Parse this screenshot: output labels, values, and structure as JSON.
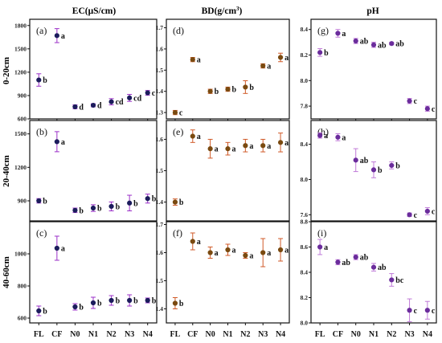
{
  "figure": {
    "column_titles": [
      "EC(μS/cm)",
      "BD(g/cm",
      "pH"
    ],
    "column_title_superscript": "3",
    "column_title_suffix": ")",
    "row_labels": [
      "0-20cm",
      "20-40cm",
      "40-60cm"
    ],
    "x_ticks": [
      "FL",
      "CF",
      "N0",
      "N1",
      "N2",
      "N3",
      "N4"
    ]
  },
  "chart_data": [
    {
      "type": "scatter",
      "panel": "(a)",
      "column": "EC",
      "depth": "0-20cm",
      "categories": [
        "FL",
        "CF",
        "N0",
        "N1",
        "N2",
        "N3",
        "N4"
      ],
      "values": [
        1100,
        1670,
        755,
        775,
        820,
        870,
        935
      ],
      "errors": [
        80,
        90,
        25,
        20,
        40,
        45,
        30
      ],
      "letters": [
        "b",
        "a",
        "d",
        "d",
        "cd",
        "cd",
        "c"
      ],
      "ylim": [
        600,
        1880
      ],
      "yticks": [
        600,
        900,
        1200,
        1500,
        1800
      ],
      "marker_color": "#1c1c5c",
      "error_color": "#9b30c8"
    },
    {
      "type": "scatter",
      "panel": "(b)",
      "column": "EC",
      "depth": "20-40cm",
      "categories": [
        "FL",
        "CF",
        "N0",
        "N1",
        "N2",
        "N3",
        "N4"
      ],
      "values": [
        900,
        1430,
        815,
        835,
        850,
        880,
        920
      ],
      "errors": [
        20,
        90,
        20,
        30,
        40,
        70,
        40
      ],
      "letters": [
        "b",
        "a",
        "b",
        "b",
        "b",
        "b",
        "b"
      ],
      "ylim": [
        720,
        1620
      ],
      "yticks": [
        900,
        1200,
        1500
      ],
      "marker_color": "#1c1c5c",
      "error_color": "#9b30c8"
    },
    {
      "type": "scatter",
      "panel": "(c)",
      "column": "EC",
      "depth": "40-60cm",
      "categories": [
        "FL",
        "CF",
        "N0",
        "N1",
        "N2",
        "N3",
        "N4"
      ],
      "values": [
        645,
        1035,
        670,
        695,
        710,
        710,
        710
      ],
      "errors": [
        30,
        75,
        20,
        35,
        30,
        35,
        15
      ],
      "letters": [
        "b",
        "a",
        "b",
        "b",
        "b",
        "b",
        "b"
      ],
      "ylim": [
        570,
        1200
      ],
      "yticks": [
        600,
        800,
        1000
      ],
      "marker_color": "#1c1c5c",
      "error_color": "#9b30c8"
    },
    {
      "type": "scatter",
      "panel": "(d)",
      "column": "BD",
      "depth": "0-20cm",
      "categories": [
        "FL",
        "CF",
        "N0",
        "N1",
        "N2",
        "N3",
        "N4"
      ],
      "values": [
        1.3,
        1.55,
        1.4,
        1.41,
        1.42,
        1.52,
        1.56
      ],
      "errors": [
        0.01,
        0.01,
        0.01,
        0.01,
        0.03,
        0.01,
        0.02
      ],
      "letters": [
        "c",
        "a",
        "b",
        "b",
        "b",
        "a",
        "a"
      ],
      "ylim": [
        1.27,
        1.74
      ],
      "yticks": [
        1.3,
        1.4,
        1.5,
        1.6,
        1.7
      ],
      "marker_color": "#7a4a10",
      "error_color": "#d05a28"
    },
    {
      "type": "scatter",
      "panel": "(e)",
      "column": "BD",
      "depth": "20-40cm",
      "categories": [
        "FL",
        "CF",
        "N0",
        "N1",
        "N2",
        "N3",
        "N4"
      ],
      "values": [
        1.4,
        1.61,
        1.57,
        1.57,
        1.58,
        1.58,
        1.59
      ],
      "errors": [
        0.01,
        0.02,
        0.03,
        0.02,
        0.02,
        0.02,
        0.03
      ],
      "letters": [
        "b",
        "a",
        "a",
        "a",
        "a",
        "a",
        "a"
      ],
      "ylim": [
        1.34,
        1.66
      ],
      "yticks": [
        1.4,
        1.5,
        1.6
      ],
      "marker_color": "#7a4a10",
      "error_color": "#d05a28"
    },
    {
      "type": "scatter",
      "panel": "(f)",
      "column": "BD",
      "depth": "40-60cm",
      "categories": [
        "FL",
        "CF",
        "N0",
        "N1",
        "N2",
        "N3",
        "N4"
      ],
      "values": [
        1.42,
        1.64,
        1.6,
        1.61,
        1.59,
        1.6,
        1.61
      ],
      "errors": [
        0.02,
        0.03,
        0.02,
        0.02,
        0.01,
        0.05,
        0.04
      ],
      "letters": [
        "b",
        "a",
        "a",
        "a",
        "a",
        "a",
        "a"
      ],
      "ylim": [
        1.35,
        1.71
      ],
      "yticks": [
        1.4,
        1.5,
        1.6,
        1.7
      ],
      "marker_color": "#7a4a10",
      "error_color": "#d05a28"
    },
    {
      "type": "scatter",
      "panel": "(g)",
      "column": "pH",
      "depth": "0-20cm",
      "categories": [
        "FL",
        "CF",
        "N0",
        "N1",
        "N2",
        "N3",
        "N4"
      ],
      "values": [
        8.22,
        8.37,
        8.31,
        8.28,
        8.29,
        7.84,
        7.78
      ],
      "errors": [
        0.03,
        0.03,
        0.02,
        0.02,
        0.01,
        0.02,
        0.02
      ],
      "letters": [
        "b",
        "a",
        "ab",
        "ab",
        "ab",
        "c",
        "c"
      ],
      "ylim": [
        7.7,
        8.48
      ],
      "yticks": [
        7.8,
        8.0,
        8.2,
        8.4
      ],
      "marker_color": "#6b2d9c",
      "error_color": "#c07ad8"
    },
    {
      "type": "scatter",
      "panel": "(h)",
      "column": "pH",
      "depth": "20-40cm",
      "categories": [
        "FL",
        "CF",
        "N0",
        "N1",
        "N2",
        "N3",
        "N4"
      ],
      "values": [
        8.5,
        8.48,
        8.22,
        8.11,
        8.16,
        7.6,
        7.64
      ],
      "errors": [
        0.03,
        0.04,
        0.13,
        0.09,
        0.04,
        0.02,
        0.04
      ],
      "letters": [
        "a",
        "a",
        "ab",
        "b",
        "b",
        "c",
        "c"
      ],
      "ylim": [
        7.53,
        8.67
      ],
      "yticks": [
        7.6,
        8.0,
        8.4
      ],
      "marker_color": "#6b2d9c",
      "error_color": "#c07ad8"
    },
    {
      "type": "scatter",
      "panel": "(i)",
      "column": "pH",
      "depth": "40-60cm",
      "categories": [
        "FL",
        "CF",
        "N0",
        "N1",
        "N2",
        "N3",
        "N4"
      ],
      "values": [
        8.6,
        8.48,
        8.52,
        8.44,
        8.34,
        8.1,
        8.1
      ],
      "errors": [
        0.06,
        0.02,
        0.02,
        0.03,
        0.05,
        0.09,
        0.07
      ],
      "letters": [
        "a",
        "ab",
        "ab",
        "ab",
        "bc",
        "c",
        "c"
      ],
      "ylim": [
        8.0,
        8.8
      ],
      "yticks": [
        8.0,
        8.2,
        8.4,
        8.6,
        8.8
      ],
      "marker_color": "#6b2d9c",
      "error_color": "#c07ad8"
    }
  ]
}
